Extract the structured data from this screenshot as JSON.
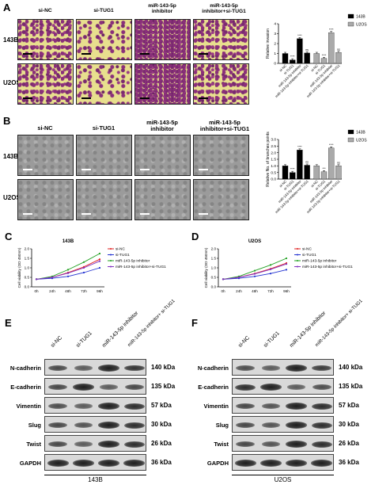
{
  "panelA": {
    "letter": "A",
    "cols": [
      "si-NC",
      "si-TUG1",
      "miR-143-5p inhibitor",
      "miR-143-5p inhibitor+si-TUG1"
    ],
    "rows": [
      "143B",
      "U2OS"
    ],
    "chart": {
      "ylabel": "Relative invasion",
      "legend": [
        "143B",
        "U2OS"
      ],
      "ticks": [
        "0",
        "1",
        "2",
        "3",
        "4"
      ]
    }
  },
  "panelB": {
    "letter": "B",
    "cols": [
      "si-NC",
      "si-TUG1",
      "miR-143-5p inhibitor",
      "miR-143-5p inhibitor+si-TUG1"
    ],
    "rows": [
      "143B",
      "U2OS"
    ],
    "chart": {
      "ylabel": "Relative No. of branches points",
      "legend": [
        "143B",
        "U2OS"
      ],
      "ticks": [
        "0.0",
        "0.5",
        "1.0",
        "1.5",
        "2.0",
        "2.5",
        "3.0"
      ]
    }
  },
  "group_labels": [
    "si-NC",
    "si-TUG1",
    "miR-143-5p inhibitor",
    "miR-143-5p inhibitor+si-TUG1"
  ],
  "panelC": {
    "letter": "C",
    "title": "143B",
    "ylabel": "Cell viability (OD 450nm)",
    "xticks": [
      "0h",
      "24h",
      "48h",
      "72h",
      "96h"
    ],
    "yticks": [
      "0.0",
      "0.5",
      "1.0",
      "1.5",
      "2.0"
    ],
    "legend": [
      "si-NC",
      "si-TUG1",
      "miR-143-5p inhibitor",
      "miR-143-5p inhibitor+si-TUG1"
    ]
  },
  "panelD": {
    "letter": "D",
    "title": "U2OS",
    "ylabel": "Cell viability (OD 450nm)",
    "xticks": [
      "0h",
      "24h",
      "48h",
      "72h",
      "96h"
    ],
    "yticks": [
      "0.0",
      "0.5",
      "1.0",
      "1.5",
      "2.0"
    ],
    "legend": [
      "si-NC",
      "si-TUG1",
      "miR-143-5p inhibitor",
      "miR-143-5p inhibitor+si-TUG1"
    ]
  },
  "panelE": {
    "letter": "E",
    "lanes": [
      "si-NC",
      "si-TUG1",
      "miR-143-5p inhibitor",
      "miR-143-5p inhibitor+ si-TUG1"
    ],
    "proteins": [
      "N-cadherin",
      "E-cadherin",
      "Vimentin",
      "Slug",
      "Twist",
      "GAPDH"
    ],
    "kda": [
      "140 kDa",
      "135 kDa",
      "57 kDa",
      "30 kDa",
      "26 kDa",
      "36 kDa"
    ],
    "cell": "143B",
    "band_intensity": [
      [
        0.6,
        0.45,
        0.9,
        0.75
      ],
      [
        0.6,
        0.9,
        0.45,
        0.6
      ],
      [
        0.55,
        0.45,
        0.9,
        0.8
      ],
      [
        0.6,
        0.5,
        0.9,
        0.8
      ],
      [
        0.6,
        0.45,
        0.9,
        0.8
      ],
      [
        0.9,
        0.9,
        0.9,
        0.9
      ]
    ]
  },
  "panelF": {
    "letter": "F",
    "lanes": [
      "si-NC",
      "si-TUG1",
      "miR-143-5p inhibitor",
      "miR-143-5p inhibitor+ si-TUG1"
    ],
    "proteins": [
      "N-cadherin",
      "E-cadherin",
      "Vimentin",
      "Slug",
      "Twist",
      "GAPDH"
    ],
    "kda": [
      "140 kDa",
      "135 kDa",
      "57 kDa",
      "30 kDa",
      "26 kDa",
      "36 kDa"
    ],
    "cell": "U2OS",
    "band_intensity": [
      [
        0.55,
        0.45,
        0.9,
        0.7
      ],
      [
        0.8,
        0.9,
        0.45,
        0.55
      ],
      [
        0.6,
        0.5,
        0.9,
        0.8
      ],
      [
        0.6,
        0.5,
        0.9,
        0.8
      ],
      [
        0.6,
        0.5,
        0.9,
        0.8
      ],
      [
        0.9,
        0.9,
        0.9,
        0.9
      ]
    ]
  },
  "chart_data": [
    {
      "type": "bar",
      "panel": "A",
      "categories": [
        "si-NC",
        "si-TUG1",
        "miR-143-5p inhibitor",
        "miR-143-5p inhibitor+si-TUG1"
      ],
      "series": [
        {
          "name": "143B",
          "values": [
            1.0,
            0.35,
            2.5,
            1.05
          ],
          "color": "#000000"
        },
        {
          "name": "U2OS",
          "values": [
            1.0,
            0.5,
            3.1,
            1.1
          ],
          "color": "#aaaaaa"
        }
      ],
      "significance": [
        "",
        "****",
        "****",
        "ns",
        "",
        "****",
        "****",
        "ns"
      ],
      "ylabel": "Relative invasion",
      "ylim": [
        0,
        4
      ]
    },
    {
      "type": "bar",
      "panel": "B",
      "categories": [
        "si-NC",
        "si-TUG1",
        "miR-143-5p inhibitor",
        "miR-143-5p inhibitor+si-TUG1"
      ],
      "series": [
        {
          "name": "143B",
          "values": [
            1.0,
            0.5,
            2.2,
            1.05
          ],
          "color": "#000000"
        },
        {
          "name": "U2OS",
          "values": [
            1.0,
            0.55,
            2.35,
            1.0
          ],
          "color": "#aaaaaa"
        }
      ],
      "significance": [
        "",
        "****",
        "****",
        "ns",
        "",
        "***",
        "****",
        "ns"
      ],
      "ylabel": "Relative No. of branches points",
      "ylim": [
        0,
        3
      ]
    },
    {
      "type": "line",
      "panel": "C",
      "title": "143B",
      "x": [
        "0h",
        "24h",
        "48h",
        "72h",
        "96h"
      ],
      "series": [
        {
          "name": "si-NC",
          "values": [
            0.4,
            0.5,
            0.75,
            1.05,
            1.45
          ],
          "color": "#e02020"
        },
        {
          "name": "si-TUG1",
          "values": [
            0.4,
            0.45,
            0.55,
            0.75,
            1.0
          ],
          "color": "#2030d0"
        },
        {
          "name": "miR-143-5p inhibitor",
          "values": [
            0.4,
            0.55,
            0.9,
            1.3,
            1.75
          ],
          "color": "#20a020"
        },
        {
          "name": "miR-143-5p inhibitor+si-TUG1",
          "values": [
            0.4,
            0.5,
            0.72,
            1.0,
            1.35
          ],
          "color": "#8030c0"
        }
      ],
      "ylabel": "Cell viability (OD 450nm)",
      "ylim": [
        0,
        2
      ]
    },
    {
      "type": "line",
      "panel": "D",
      "title": "U2OS",
      "x": [
        "0h",
        "24h",
        "48h",
        "72h",
        "96h"
      ],
      "series": [
        {
          "name": "si-NC",
          "values": [
            0.4,
            0.5,
            0.7,
            0.95,
            1.25
          ],
          "color": "#e02020"
        },
        {
          "name": "si-TUG1",
          "values": [
            0.4,
            0.45,
            0.55,
            0.7,
            0.9
          ],
          "color": "#2030d0"
        },
        {
          "name": "miR-143-5p inhibitor",
          "values": [
            0.4,
            0.55,
            0.85,
            1.15,
            1.5
          ],
          "color": "#20a020"
        },
        {
          "name": "miR-143-5p inhibitor+si-TUG1",
          "values": [
            0.4,
            0.5,
            0.68,
            0.92,
            1.2
          ],
          "color": "#8030c0"
        }
      ],
      "ylabel": "Cell viability (OD 450nm)",
      "ylim": [
        0,
        2
      ]
    }
  ]
}
